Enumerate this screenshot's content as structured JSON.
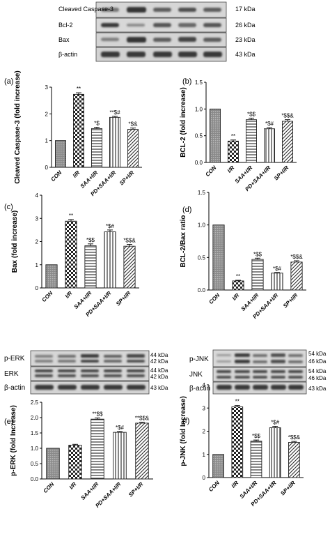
{
  "blots": {
    "top": {
      "rows": [
        {
          "label": "Cleaved Caspase-3",
          "kda": "17 kDa"
        },
        {
          "label": "Bcl-2",
          "kda": "26 kDa"
        },
        {
          "label": "Bax",
          "kda": "23 kDa"
        },
        {
          "label": "β-actin",
          "kda": "43 kDa"
        }
      ]
    },
    "erk": {
      "rows": [
        {
          "label": "p-ERK",
          "kda": [
            "44 kDa",
            "42 kDa"
          ]
        },
        {
          "label": "ERK",
          "kda": [
            "44 kDa",
            "42 kDa"
          ]
        },
        {
          "label": "β-actin",
          "kda": [
            "43 kDa"
          ]
        }
      ]
    },
    "jnk": {
      "rows": [
        {
          "label": "p-JNK",
          "kda": [
            "54 kDa",
            "46 kDa"
          ]
        },
        {
          "label": "JNK",
          "kda": [
            "54 kDa",
            "46 kDa"
          ]
        },
        {
          "label": "β-actin",
          "kda": [
            "43 kDa"
          ]
        }
      ]
    }
  },
  "colors": {
    "bar_fill": "#ffffff",
    "bar_stroke": "#222222",
    "axis": "#000000",
    "con_fill": "#9a9a9a"
  },
  "chart_data": [
    {
      "panel": "(a)",
      "type": "bar",
      "categories": [
        "CON",
        "I/R",
        "SAA+I/R",
        "PD+SAA+I/R",
        "SP+I/R"
      ],
      "values": [
        1.0,
        2.73,
        1.45,
        1.87,
        1.42
      ],
      "errors": [
        0.0,
        0.06,
        0.05,
        0.04,
        0.05
      ],
      "annotations": [
        "",
        "**",
        "*$",
        "**$#",
        "*$&"
      ],
      "ylabel": "Cleaved Caspase-3 (fold increase)",
      "ylim": [
        0,
        3
      ],
      "yticks": [
        0,
        1,
        2,
        3
      ]
    },
    {
      "panel": "(b)",
      "type": "bar",
      "categories": [
        "CON",
        "I/R",
        "SAA+I/R",
        "PD+SAA+I/R",
        "SP+I/R"
      ],
      "values": [
        1.0,
        0.4,
        0.8,
        0.63,
        0.77
      ],
      "errors": [
        0.0,
        0.02,
        0.03,
        0.02,
        0.03
      ],
      "annotations": [
        "",
        "**",
        "*$$",
        "*$#",
        "*$$&"
      ],
      "ylabel": "BCL-2 (fold increase)",
      "ylim": [
        0,
        1.5
      ],
      "yticks": [
        0.0,
        0.5,
        1.0,
        1.5
      ]
    },
    {
      "panel": "(c)",
      "type": "bar",
      "categories": [
        "CON",
        "I/R",
        "SAA+I/R",
        "PD+SAA+I/R",
        "SP+I/R"
      ],
      "values": [
        1.0,
        2.88,
        1.82,
        2.42,
        1.8
      ],
      "errors": [
        0.0,
        0.07,
        0.08,
        0.08,
        0.08
      ],
      "annotations": [
        "",
        "**",
        "*$$",
        "*$#",
        "*$$&"
      ],
      "ylabel": "Bax (fold increase)",
      "ylim": [
        0,
        4
      ],
      "yticks": [
        0,
        1,
        2,
        3,
        4
      ]
    },
    {
      "panel": "(d)",
      "type": "bar",
      "categories": [
        "CON",
        "I/R",
        "SAA+I/R",
        "PD+SAA+I/R",
        "SP+I/R"
      ],
      "values": [
        1.0,
        0.14,
        0.47,
        0.26,
        0.43
      ],
      "errors": [
        0.0,
        0.01,
        0.02,
        0.01,
        0.02
      ],
      "annotations": [
        "",
        "**",
        "*$$",
        "*$#",
        "*$$&"
      ],
      "ylabel": "BCL-2/Bax ratio",
      "ylim": [
        0,
        1.5
      ],
      "yticks": [
        0.0,
        0.5,
        1.0,
        1.5
      ]
    },
    {
      "panel": "(e)",
      "type": "bar",
      "categories": [
        "CON",
        "I/R",
        "SAA+I/R",
        "PD+SAA+I/R",
        "SP+I/R"
      ],
      "values": [
        1.0,
        1.1,
        1.95,
        1.52,
        1.82
      ],
      "errors": [
        0.0,
        0.03,
        0.04,
        0.03,
        0.03
      ],
      "annotations": [
        "",
        "",
        "**$$",
        "*$#",
        "**$$&"
      ],
      "ylabel": "p-ERK (fold Increase)",
      "ylim": [
        0,
        2.5
      ],
      "yticks": [
        0.0,
        0.5,
        1.0,
        1.5,
        2.0,
        2.5
      ]
    },
    {
      "panel": "(f)",
      "type": "bar",
      "categories": [
        "CON",
        "I/R",
        "SAA+I/R",
        "PD+SAA+I/R",
        "SP+I/R"
      ],
      "values": [
        1.0,
        3.05,
        1.57,
        2.15,
        1.52
      ],
      "errors": [
        0.0,
        0.06,
        0.05,
        0.06,
        0.04
      ],
      "annotations": [
        "",
        "**",
        "*$$",
        "*$#",
        "*$$&"
      ],
      "ylabel": "p-JNK (fold Increase)",
      "ylim": [
        0,
        4
      ],
      "yticks": [
        0,
        1,
        2,
        3,
        4
      ]
    }
  ]
}
